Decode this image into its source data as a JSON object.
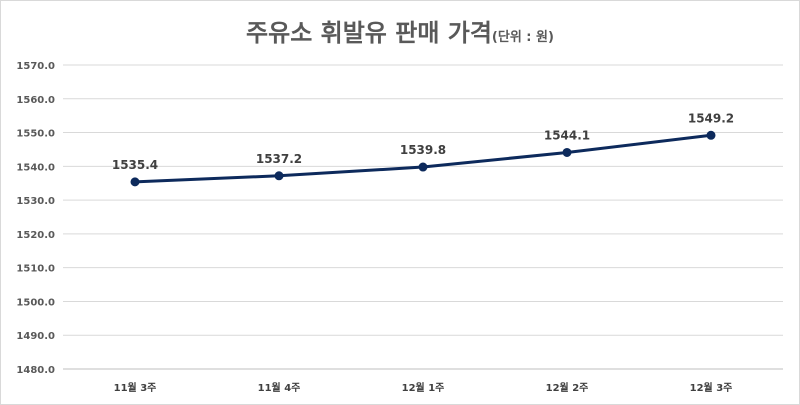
{
  "chart_data": {
    "type": "line",
    "title": "주유소 휘발유 판매 가격",
    "title_unit": "(단위 : 원)",
    "categories": [
      "11월 3주",
      "11월 4주",
      "12월 1주",
      "12월 2주",
      "12월 3주"
    ],
    "series": [
      {
        "values": [
          1535.4,
          1537.2,
          1539.8,
          1544.1,
          1549.2
        ],
        "color": "#0d2a5c"
      }
    ],
    "data_labels": [
      "1535.4",
      "1537.2",
      "1539.8",
      "1544.1",
      "1549.2"
    ],
    "ylim": [
      1480,
      1570
    ],
    "ytick_step": 10,
    "ytick_labels": [
      "1480.0",
      "1490.0",
      "1500.0",
      "1510.0",
      "1520.0",
      "1530.0",
      "1540.0",
      "1550.0",
      "1560.0",
      "1570.0"
    ],
    "grid": true,
    "legend": "none",
    "xlabel": "",
    "ylabel": ""
  }
}
